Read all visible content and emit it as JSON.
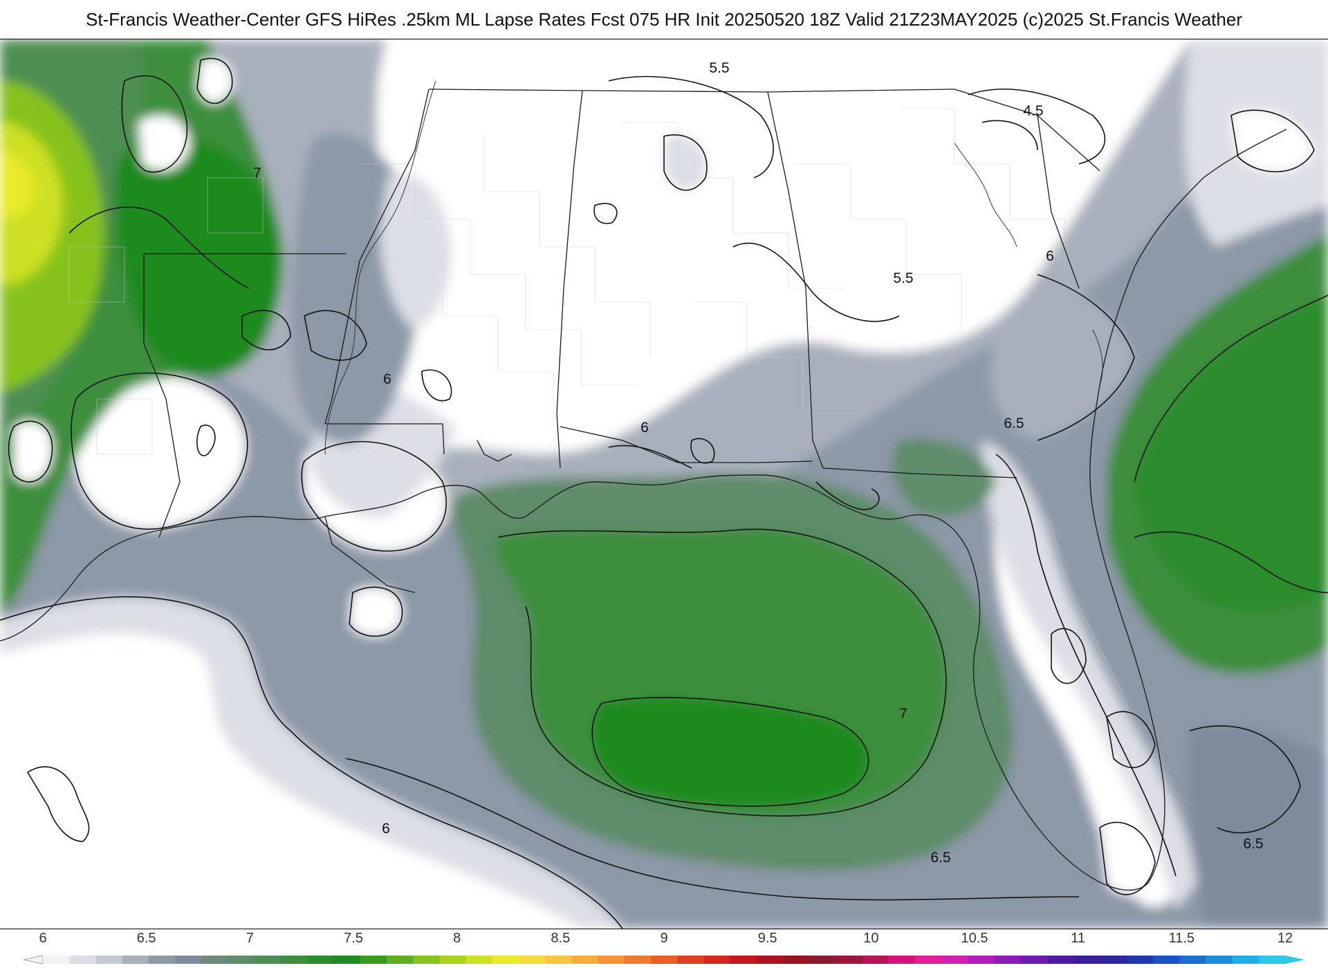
{
  "header": {
    "title": "St-Francis Weather-Center GFS HiRes .25km ML Lapse Rates  Fcst 075 HR Init 20250520 18Z  Valid 21Z23MAY2025    (c)2025 St.Francis Weather"
  },
  "map": {
    "contour_labels": [
      {
        "id": "l55a",
        "text": "5.5"
      },
      {
        "id": "l45",
        "text": "4.5"
      },
      {
        "id": "l7a",
        "text": "7"
      },
      {
        "id": "l6a",
        "text": "6"
      },
      {
        "id": "l6b",
        "text": "6"
      },
      {
        "id": "l55b",
        "text": "5.5"
      },
      {
        "id": "l6c",
        "text": "6"
      },
      {
        "id": "l65a",
        "text": "6.5"
      },
      {
        "id": "l7b",
        "text": "7"
      },
      {
        "id": "l6d",
        "text": "6"
      },
      {
        "id": "l65b",
        "text": "6.5"
      },
      {
        "id": "l65c",
        "text": "6.5"
      }
    ],
    "colors": {
      "white": "#ffffff",
      "light_gray": "#dcdfe5",
      "mid_gray": "#a8b0bc",
      "slate": "#7e8b9d",
      "gray_green": "#5f8c6a",
      "green": "#3d8f3d",
      "bright_green": "#1f8a1f",
      "yellow_green": "#9fcf1f",
      "yellow": "#e6ee2a"
    }
  },
  "colorbar": {
    "ticks": [
      "6",
      "6.5",
      "7",
      "7.5",
      "8",
      "8.5",
      "9",
      "9.5",
      "10",
      "10.5",
      "11",
      "11.5",
      "12"
    ],
    "colors": [
      "#f2f3f5",
      "#dcdfe5",
      "#c4c9d1",
      "#a8b0bc",
      "#8d98a7",
      "#7e8b9d",
      "#6d8a7a",
      "#5f8c6a",
      "#4d8e52",
      "#3d8f3d",
      "#2b8c2b",
      "#1f8a1f",
      "#3a9a1e",
      "#5fae1d",
      "#87c21e",
      "#a9d21f",
      "#cde024",
      "#eaea2a",
      "#f4dc3a",
      "#f7c640",
      "#f7ad3b",
      "#f49434",
      "#f07a2d",
      "#ec5d27",
      "#e43e22",
      "#d9231f",
      "#c8161f",
      "#b0101f",
      "#981222",
      "#8a1a2f",
      "#a0153e",
      "#bb1157",
      "#d6137a",
      "#e61c9a",
      "#d51fb0",
      "#b21cb8",
      "#8c1ab8",
      "#6c1ab2",
      "#4f1aa6",
      "#3a1e9c",
      "#2a27a0",
      "#1f37b2",
      "#1b50c6",
      "#1a6ed6",
      "#1c8ee0",
      "#22aee6",
      "#2cc8e6"
    ]
  }
}
